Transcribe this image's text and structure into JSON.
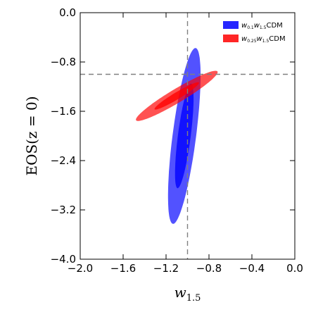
{
  "chart_data": {
    "type": "contour",
    "xlabel": "w",
    "xlabel_sub": "1.5",
    "ylabel": "EOS(z = 0)",
    "xlim": [
      -2.0,
      0.0
    ],
    "ylim": [
      -4.0,
      0.0
    ],
    "xticks": [
      "−2.0",
      "−1.6",
      "−1.2",
      "−0.8",
      "−0.4",
      "0.0"
    ],
    "yticks": [
      "0.0",
      "−0.8",
      "−1.6",
      "−2.4",
      "−3.2",
      "−4.0"
    ],
    "xtick_values": [
      -2.0,
      -1.6,
      -1.2,
      -0.8,
      -0.4,
      0.0
    ],
    "ytick_values": [
      0.0,
      -0.8,
      -1.6,
      -2.4,
      -3.2,
      -4.0
    ],
    "reference_lines": {
      "x": -1.0,
      "y": -1.0,
      "style": "dashed",
      "color": "#808080"
    },
    "grid": false,
    "legend_position": "top-right",
    "series": [
      {
        "name_main": "w",
        "name_sub1": "0.1",
        "name_mid": "w",
        "name_sub2": "1.5",
        "name_suffix": "CDM",
        "color": "#0000ff",
        "center": [
          -1.03,
          -2.0
        ],
        "contours": [
          {
            "level": "95%",
            "semi_a": 0.11,
            "semi_b": 1.43,
            "angle_deg": 4.2
          },
          {
            "level": "68%",
            "semi_a": 0.06,
            "semi_b": 0.85,
            "angle_deg": 4.2
          }
        ]
      },
      {
        "name_main": "w",
        "name_sub1": "0.25",
        "name_mid": "w",
        "name_sub2": "1.5",
        "name_suffix": "CDM",
        "color": "#ff0000",
        "center": [
          -1.1,
          -1.35
        ],
        "contours": [
          {
            "level": "95%",
            "semi_a": 0.09,
            "semi_b": 0.55,
            "angle_deg": 43
          },
          {
            "level": "68%",
            "semi_a": 0.045,
            "semi_b": 0.3,
            "angle_deg": 43
          }
        ]
      }
    ]
  }
}
